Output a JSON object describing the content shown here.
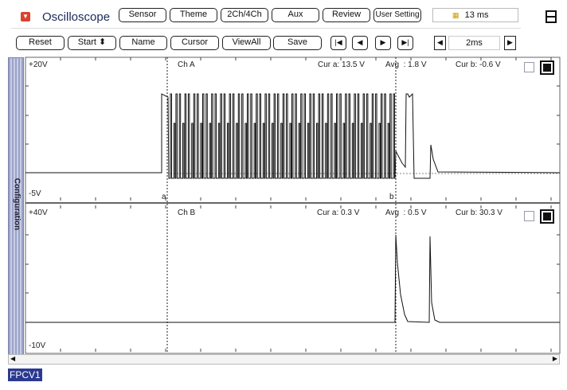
{
  "header": {
    "title": "Oscilloscope",
    "menu_icon": "dropdown-red-icon",
    "tabs": [
      "Sensor",
      "Theme",
      "2Ch/4Ch",
      "Aux",
      "Review",
      "User Setting"
    ],
    "timer": "13 ms",
    "timer_icon": "ab-icon",
    "layout_icon": "split-view-icon"
  },
  "toolbar": {
    "buttons": [
      "Reset",
      "Start",
      "Name",
      "Cursor",
      "ViewAll",
      "Save"
    ],
    "time_div": "2ms"
  },
  "sidebar": {
    "label": "Configuration"
  },
  "chA": {
    "top": "+20V",
    "bottom": "-5V",
    "name": "Ch A",
    "cur_a": "Cur a: 13.5 V",
    "avg": "Avg  : 1.8 V",
    "cur_b": "Cur b: -0.6 V",
    "cursor_a": "a",
    "cursor_b": "b"
  },
  "chB": {
    "top": "+40V",
    "bottom": "-10V",
    "name": "Ch B",
    "cur_a": "Cur a: 0.3 V",
    "avg": "Avg  : 0.5 V",
    "cur_b": "Cur b: 30.3 V"
  },
  "footer": {
    "label": "FPCV1"
  },
  "colors": {
    "accent": "#d9432f",
    "label_bg": "#2b3990"
  }
}
